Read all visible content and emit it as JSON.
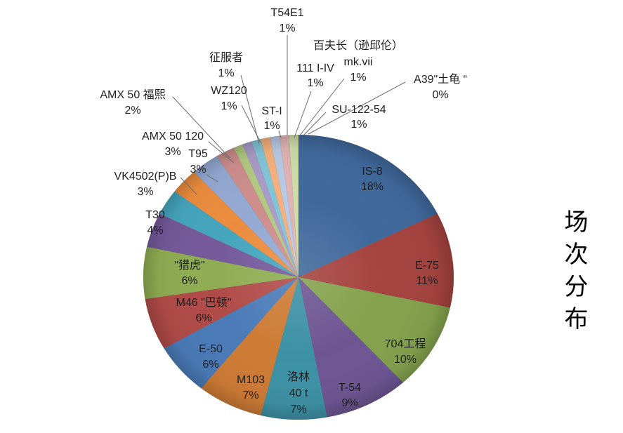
{
  "chart_data": {
    "type": "pie",
    "title": "场次分布",
    "legend": "none",
    "start_angle_deg": -90,
    "direction": "clockwise",
    "background_color": "#FFFFFF",
    "label_text_color": "#1F1F1F",
    "slices": [
      {
        "name": "IS-8",
        "name_lines": [
          "IS-8"
        ],
        "pct_label": "18%",
        "value": 18,
        "color": "#40699C",
        "label_placement": "inside"
      },
      {
        "name": "E-75",
        "name_lines": [
          "E-75"
        ],
        "pct_label": "11%",
        "value": 11,
        "color": "#A5433F",
        "label_placement": "inside"
      },
      {
        "name": "704工程",
        "name_lines": [
          "704工程"
        ],
        "pct_label": "10%",
        "value": 10,
        "color": "#84A24D",
        "label_placement": "inside"
      },
      {
        "name": "T-54",
        "name_lines": [
          "T-54"
        ],
        "pct_label": "9%",
        "value": 9,
        "color": "#6E5693",
        "label_placement": "inside"
      },
      {
        "name": "洛林 40 t",
        "name_lines": [
          "洛林",
          "40 t"
        ],
        "pct_label": "7%",
        "value": 7,
        "color": "#3D91A5",
        "label_placement": "inside"
      },
      {
        "name": "M103",
        "name_lines": [
          "M103"
        ],
        "pct_label": "7%",
        "value": 7,
        "color": "#CD7B35",
        "label_placement": "inside"
      },
      {
        "name": "E-50",
        "name_lines": [
          "E-50"
        ],
        "pct_label": "6%",
        "value": 6,
        "color": "#4A7BB8",
        "label_placement": "inside"
      },
      {
        "name": "M46 \"巴顿\"",
        "name_lines": [
          "M46 \"巴顿\""
        ],
        "pct_label": "6%",
        "value": 6,
        "color": "#B04B48",
        "label_placement": "inside"
      },
      {
        "name": "\"猎虎\"",
        "name_lines": [
          "\"猎虎\""
        ],
        "pct_label": "6%",
        "value": 6,
        "color": "#8FAD52",
        "label_placement": "inside"
      },
      {
        "name": "T30",
        "name_lines": [
          "T30"
        ],
        "pct_label": "4%",
        "value": 4,
        "color": "#75599B",
        "label_placement": "outside"
      },
      {
        "name": "VK4502(P)B",
        "name_lines": [
          "VK4502(P)B"
        ],
        "pct_label": "3%",
        "value": 3,
        "color": "#45A5BE",
        "label_placement": "outside"
      },
      {
        "name": "T95",
        "name_lines": [
          "T95"
        ],
        "pct_label": "3%",
        "value": 3,
        "color": "#EB8C3D",
        "label_placement": "outside"
      },
      {
        "name": "AMX 50 120",
        "name_lines": [
          "AMX 50 120"
        ],
        "pct_label": "3%",
        "value": 3,
        "color": "#93A9D3",
        "label_placement": "outside"
      },
      {
        "name": "AMX 50 福熙",
        "name_lines": [
          "AMX 50 福熙"
        ],
        "pct_label": "2%",
        "value": 2,
        "color": "#CD8E8C",
        "label_placement": "outside"
      },
      {
        "name": "征服者",
        "name_lines": [
          "征服者"
        ],
        "pct_label": "1%",
        "value": 1,
        "color": "#B2C882",
        "label_placement": "outside"
      },
      {
        "name": "WZ120",
        "name_lines": [
          "WZ120"
        ],
        "pct_label": "1%",
        "value": 1,
        "color": "#A89CC8",
        "label_placement": "outside"
      },
      {
        "name": "ST-I",
        "name_lines": [
          "ST-I"
        ],
        "pct_label": "1%",
        "value": 1,
        "color": "#82C4D7",
        "label_placement": "outside"
      },
      {
        "name": "T54E1",
        "name_lines": [
          "T54E1"
        ],
        "pct_label": "1%",
        "value": 1,
        "color": "#F5B07B",
        "label_placement": "outside"
      },
      {
        "name": "111 I-IV",
        "name_lines": [
          "111 I-IV"
        ],
        "pct_label": "1%",
        "value": 1,
        "color": "#B7C9E4",
        "label_placement": "outside"
      },
      {
        "name": "百夫长（逊邱伦）mk.vii",
        "name_lines": [
          "百夫长（逊邱伦）",
          "mk.vii"
        ],
        "pct_label": "1%",
        "value": 1,
        "color": "#DFB3B2",
        "label_placement": "outside"
      },
      {
        "name": "SU-122-54",
        "name_lines": [
          "SU-122-54"
        ],
        "pct_label": "1%",
        "value": 1,
        "color": "#CDDCA9",
        "label_placement": "outside"
      },
      {
        "name": "A39\"土龟 “",
        "name_lines": [
          "A39\"土龟 “"
        ],
        "pct_label": "0%",
        "value": 0,
        "color": "#C9BFD8",
        "label_placement": "outside"
      }
    ]
  }
}
